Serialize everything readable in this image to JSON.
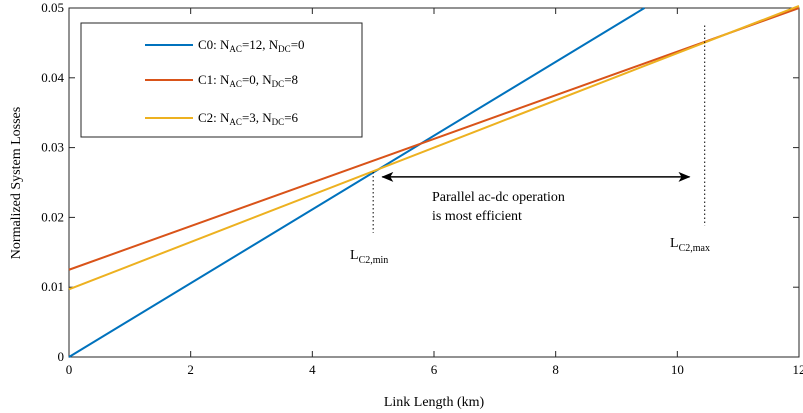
{
  "chart_data": {
    "type": "line",
    "xlabel": "Link Length (km)",
    "ylabel": "Normalized System Losses",
    "xlim": [
      0,
      12
    ],
    "ylim": [
      0,
      0.05
    ],
    "xticks": [
      0,
      2,
      4,
      6,
      8,
      10,
      12
    ],
    "yticks": [
      0,
      0.01,
      0.02,
      0.03,
      0.04,
      0.05
    ],
    "xtick_labels": [
      "0",
      "2",
      "4",
      "6",
      "8",
      "10",
      "12"
    ],
    "ytick_labels": [
      "0",
      "0.01",
      "0.02",
      "0.03",
      "0.04",
      "0.05"
    ],
    "grid": false,
    "legend_position": "top-left",
    "series": [
      {
        "key": "C0",
        "color": "#0072BD",
        "x": [
          0,
          9.46
        ],
        "y": [
          0,
          0.05
        ],
        "legend": {
          "main": "C0: N",
          "sub1": "AC",
          "mid": "=12, N",
          "sub2": "DC",
          "end": "=0"
        }
      },
      {
        "key": "C1",
        "color": "#D95319",
        "x": [
          0,
          12
        ],
        "y": [
          0.0125,
          0.05
        ],
        "legend": {
          "main": "C1: N",
          "sub1": "AC",
          "mid": "=0, N",
          "sub2": "DC",
          "end": "=8"
        }
      },
      {
        "key": "C2",
        "color": "#EDB120",
        "x": [
          0,
          12
        ],
        "y": [
          0.0097,
          0.0503
        ],
        "legend": {
          "main": "C2: N",
          "sub1": "AC",
          "mid": "=3, N",
          "sub2": "DC",
          "end": "=6"
        }
      }
    ],
    "annotations": {
      "text_line1": "Parallel ac-dc operation",
      "text_line2": "is most efficient",
      "arrow_x": [
        5.15,
        10.2
      ],
      "arrow_y": 0.0258,
      "lmin": {
        "x": 5.0,
        "y_top": 0.0265,
        "y_bottom": 0.0178,
        "main": "L",
        "sub": "C2,min"
      },
      "lmax": {
        "x": 10.45,
        "y_top": 0.0475,
        "y_bottom": 0.0188,
        "main": "L",
        "sub": "C2,max"
      }
    }
  }
}
